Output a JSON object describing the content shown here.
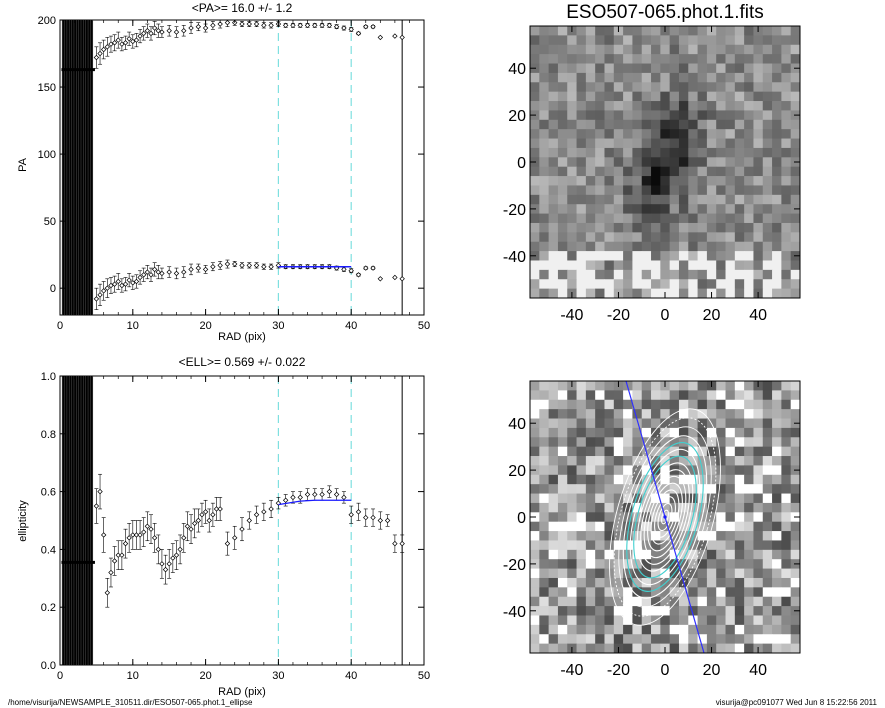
{
  "chart_data": [
    {
      "type": "scatter",
      "title": "<PA>=  16.0 +/-   1.2",
      "xlabel": "RAD (pix)",
      "ylabel": "PA",
      "xlim": [
        0,
        50
      ],
      "ylim": [
        -20,
        200
      ],
      "xticks": [
        0,
        10,
        20,
        30,
        40,
        50
      ],
      "yticks": [
        0,
        50,
        100,
        150,
        200
      ],
      "vlines_dashed": [
        30,
        40
      ],
      "vline_solid": 47,
      "fit": {
        "x0": 30,
        "x1": 40,
        "y": 16.0
      },
      "series": [
        {
          "x": [
            5.0,
            5.5,
            6.0,
            6.5,
            7.0,
            7.5,
            8.0,
            8.5,
            9.0,
            9.5,
            10.0,
            10.5,
            11.0,
            11.5,
            12.0,
            12.5,
            13.0,
            13.5,
            14.0,
            15.0,
            16.0,
            17.0,
            18.0,
            19.0,
            20.0,
            21.0,
            22.0,
            23.0,
            24.0,
            25.0,
            26.0,
            27.0,
            28.0,
            29.0,
            30.0,
            31.0,
            32.0,
            33.0,
            34.0,
            35.0,
            36.0,
            37.0,
            38.0,
            39.0,
            40.0,
            41.0,
            42.0,
            43.0,
            44.0,
            46.0,
            47.0
          ],
          "y": [
            -8,
            -5,
            -2,
            0,
            2,
            3,
            5,
            2,
            3,
            6,
            4,
            5,
            8,
            10,
            12,
            10,
            14,
            12,
            11,
            12,
            11,
            12,
            14,
            15,
            14,
            16,
            17,
            18,
            18,
            17,
            17,
            17,
            16,
            16,
            17,
            16,
            16,
            16,
            16,
            16,
            16,
            16,
            15,
            14,
            13,
            10,
            15,
            15,
            7,
            8,
            7
          ],
          "err": [
            8,
            8,
            7,
            7,
            6,
            6,
            6,
            5,
            5,
            5,
            5,
            5,
            5,
            5,
            5,
            5,
            5,
            5,
            4,
            4,
            4,
            4,
            4,
            3,
            3,
            3,
            3,
            3,
            2,
            2,
            2,
            2,
            2,
            2,
            2,
            1.5,
            1.5,
            1.5,
            1.5,
            1.5,
            1.5,
            1.5,
            1.5,
            1.5,
            1.5,
            1,
            1,
            1,
            0,
            0,
            0
          ]
        },
        {
          "x": [
            5.0,
            5.5,
            6.0,
            6.5,
            7.0,
            7.5,
            8.0,
            8.5,
            9.0,
            9.5,
            10.0,
            10.5,
            11.0,
            11.5,
            12.0,
            12.5,
            13.0,
            13.5,
            14.0,
            15.0,
            16.0,
            17.0,
            18.0,
            19.0,
            20.0,
            21.0,
            22.0,
            23.0,
            24.0,
            25.0,
            26.0,
            27.0,
            28.0,
            29.0,
            30.0,
            31.0,
            32.0,
            33.0,
            34.0,
            35.0,
            36.0,
            37.0,
            38.0,
            39.0,
            40.0,
            41.0,
            42.0,
            43.0,
            44.0,
            46.0,
            47.0
          ],
          "y": [
            172,
            175,
            178,
            180,
            182,
            183,
            185,
            182,
            183,
            186,
            184,
            185,
            188,
            190,
            192,
            190,
            194,
            192,
            191,
            192,
            191,
            192,
            194,
            195,
            194,
            196,
            197,
            198,
            198,
            197,
            197,
            197,
            196,
            196,
            197,
            196,
            196,
            196,
            196,
            196,
            196,
            196,
            195,
            194,
            193,
            190,
            195,
            195,
            187,
            188,
            187
          ],
          "err": [
            8,
            8,
            7,
            7,
            6,
            6,
            6,
            5,
            5,
            5,
            5,
            5,
            5,
            5,
            5,
            5,
            5,
            5,
            4,
            4,
            4,
            4,
            4,
            3,
            3,
            3,
            3,
            3,
            2,
            2,
            2,
            2,
            2,
            2,
            2,
            1.5,
            1.5,
            1.5,
            1.5,
            1.5,
            1.5,
            1.5,
            1.5,
            1.5,
            1.5,
            1,
            1,
            1,
            0,
            0,
            0
          ]
        }
      ],
      "inner_flat_y": [
        -20,
        163
      ],
      "inner_x_range": [
        0.3,
        4.5
      ]
    },
    {
      "type": "scatter",
      "title": "<ELL>= 0.569 +/-  0.022",
      "xlabel": "RAD (pix)",
      "ylabel": "ellipticity",
      "xlim": [
        0,
        50
      ],
      "ylim": [
        0.0,
        1.0
      ],
      "xticks": [
        0,
        10,
        20,
        30,
        40,
        50
      ],
      "yticks": [
        0.0,
        0.2,
        0.4,
        0.6,
        0.8,
        1.0
      ],
      "ytick_labels": [
        "0.0",
        "0.2",
        "0.4",
        "0.6",
        "0.8",
        "1.0"
      ],
      "vlines_dashed": [
        30,
        40
      ],
      "vline_solid": 47,
      "fit": {
        "points": [
          [
            30,
            0.555
          ],
          [
            33,
            0.567
          ],
          [
            35,
            0.57
          ],
          [
            40,
            0.57
          ]
        ]
      },
      "series": [
        {
          "x": [
            5.0,
            5.5,
            6.0,
            6.5,
            7.0,
            7.5,
            8.0,
            8.5,
            9.0,
            9.5,
            10.0,
            10.5,
            11.0,
            11.5,
            12.0,
            12.5,
            13.0,
            13.5,
            14.0,
            14.5,
            15.0,
            15.5,
            16.0,
            16.5,
            17.0,
            17.5,
            18.0,
            18.5,
            19.0,
            19.5,
            20.0,
            20.5,
            21.0,
            21.5,
            22.0,
            23.0,
            24.0,
            25.0,
            26.0,
            27.0,
            28.0,
            29.0,
            30.0,
            31.0,
            32.0,
            33.0,
            34.0,
            35.0,
            36.0,
            37.0,
            38.0,
            39.0,
            40.0,
            41.0,
            42.0,
            43.0,
            44.0,
            45.0,
            46.0,
            47.0
          ],
          "y": [
            0.55,
            0.6,
            0.45,
            0.25,
            0.32,
            0.36,
            0.38,
            0.38,
            0.42,
            0.44,
            0.45,
            0.45,
            0.45,
            0.46,
            0.48,
            0.47,
            0.44,
            0.4,
            0.35,
            0.33,
            0.35,
            0.37,
            0.38,
            0.4,
            0.44,
            0.48,
            0.47,
            0.49,
            0.5,
            0.52,
            0.53,
            0.5,
            0.52,
            0.54,
            0.54,
            0.42,
            0.44,
            0.47,
            0.5,
            0.52,
            0.53,
            0.54,
            0.56,
            0.57,
            0.58,
            0.58,
            0.59,
            0.59,
            0.59,
            0.6,
            0.59,
            0.58,
            0.52,
            0.53,
            0.51,
            0.51,
            0.5,
            0.5,
            0.42,
            0.42
          ],
          "err": [
            0.06,
            0.06,
            0.06,
            0.05,
            0.05,
            0.05,
            0.05,
            0.05,
            0.05,
            0.05,
            0.05,
            0.05,
            0.05,
            0.05,
            0.05,
            0.05,
            0.05,
            0.05,
            0.05,
            0.05,
            0.05,
            0.05,
            0.05,
            0.05,
            0.05,
            0.05,
            0.05,
            0.05,
            0.04,
            0.04,
            0.04,
            0.04,
            0.04,
            0.04,
            0.04,
            0.04,
            0.04,
            0.04,
            0.03,
            0.03,
            0.03,
            0.03,
            0.02,
            0.02,
            0.02,
            0.02,
            0.02,
            0.02,
            0.02,
            0.02,
            0.02,
            0.02,
            0.03,
            0.03,
            0.03,
            0.03,
            0.03,
            0.02,
            0.03,
            0.03
          ]
        }
      ],
      "inner_flat_y": [
        0.0,
        0.355
      ],
      "inner_x_range": [
        0.3,
        4.5
      ]
    },
    {
      "type": "heatmap",
      "title": "ESO507-065.phot.1.fits",
      "xlim": [
        -58,
        58
      ],
      "ylim": [
        -58,
        58
      ],
      "xticks": [
        -40,
        -20,
        0,
        20,
        40
      ],
      "yticks": [
        -40,
        -20,
        0,
        20,
        40
      ]
    },
    {
      "type": "heatmap",
      "title": "",
      "xlim": [
        -58,
        58
      ],
      "ylim": [
        -58,
        58
      ],
      "xticks": [
        -40,
        -20,
        0,
        20,
        40
      ],
      "yticks": [
        -40,
        -20,
        0,
        20,
        40
      ],
      "ellipse_pa_deg": 16,
      "ellipse_ell": 0.57,
      "ellipse_semi_major": [
        3,
        6,
        9,
        12,
        15,
        18,
        21,
        24,
        27,
        30,
        33,
        36,
        40,
        44,
        48
      ],
      "major_axis_line": true
    }
  ],
  "footer": {
    "left": "/home/visurija/NEWSAMPLE_310511.dir/ESO507-065.phot.1_ellipse",
    "right": "visurija@pc091077  Wed Jun  8 15:22:56 2011"
  }
}
